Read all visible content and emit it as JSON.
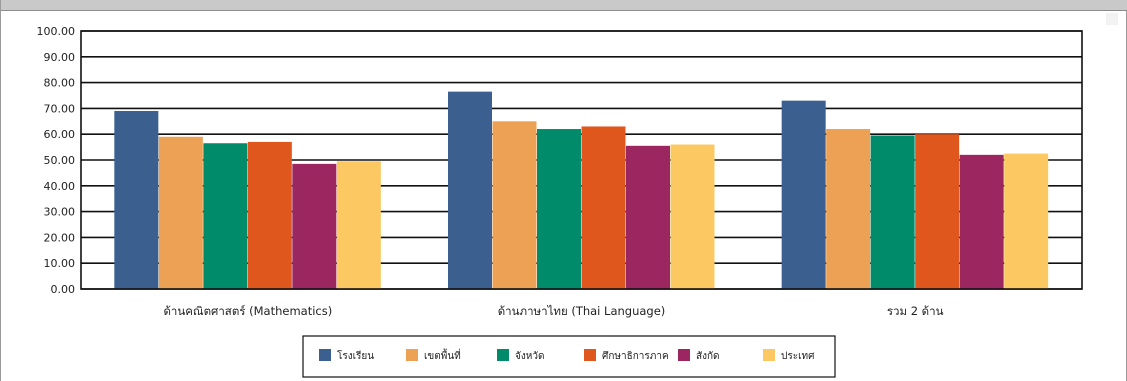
{
  "chart_data": {
    "type": "bar",
    "categories": [
      "ด้านคณิตศาสตร์ (Mathematics)",
      "ด้านภาษาไทย (Thai Language)",
      "รวม 2 ด้าน"
    ],
    "series": [
      {
        "name": "โรงเรียน",
        "color": "#3b5f8f",
        "values": [
          69.0,
          76.5,
          73.0
        ]
      },
      {
        "name": "เขตพื้นที่",
        "color": "#eca155",
        "values": [
          59.0,
          65.0,
          62.0
        ]
      },
      {
        "name": "จังหวัด",
        "color": "#008c6b",
        "values": [
          56.5,
          62.0,
          59.5
        ]
      },
      {
        "name": "ศึกษาธิการภาค",
        "color": "#e0571e",
        "values": [
          57.0,
          63.0,
          60.0
        ]
      },
      {
        "name": "สังกัด",
        "color": "#9c2660",
        "values": [
          48.5,
          55.5,
          52.0
        ]
      },
      {
        "name": "ประเทศ",
        "color": "#fbc862",
        "values": [
          49.5,
          56.0,
          52.5
        ]
      }
    ],
    "y_ticks": [
      "0.00",
      "10.00",
      "20.00",
      "30.00",
      "40.00",
      "50.00",
      "60.00",
      "70.00",
      "80.00",
      "90.00",
      "100.00"
    ],
    "ylim": [
      0,
      100
    ],
    "grid": true,
    "legend_position": "bottom-center"
  }
}
